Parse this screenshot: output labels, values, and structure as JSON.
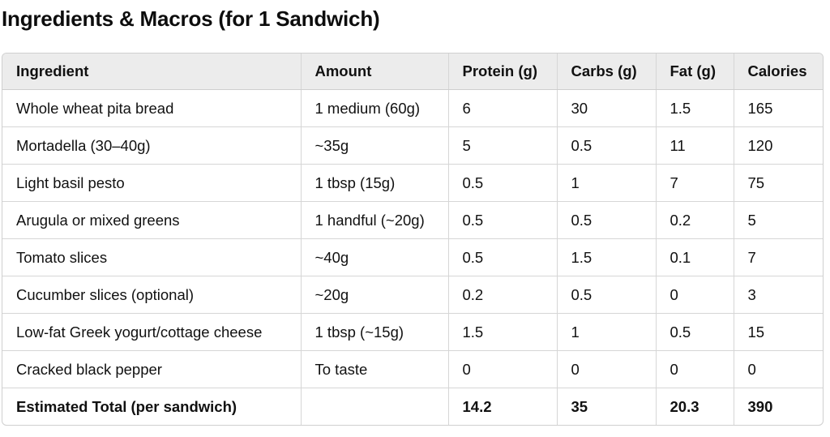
{
  "title": "Ingredients & Macros (for 1 Sandwich)",
  "table": {
    "headers": [
      "Ingredient",
      "Amount",
      "Protein (g)",
      "Carbs (g)",
      "Fat (g)",
      "Calories"
    ],
    "rows": [
      [
        "Whole wheat pita bread",
        "1 medium (60g)",
        "6",
        "30",
        "1.5",
        "165"
      ],
      [
        "Mortadella (30–40g)",
        "~35g",
        "5",
        "0.5",
        "11",
        "120"
      ],
      [
        "Light basil pesto",
        "1 tbsp (15g)",
        "0.5",
        "1",
        "7",
        "75"
      ],
      [
        "Arugula or mixed greens",
        "1 handful (~20g)",
        "0.5",
        "0.5",
        "0.2",
        "5"
      ],
      [
        "Tomato slices",
        "~40g",
        "0.5",
        "1.5",
        "0.1",
        "7"
      ],
      [
        "Cucumber slices (optional)",
        "~20g",
        "0.2",
        "0.5",
        "0",
        "3"
      ],
      [
        "Low-fat Greek yogurt/cottage cheese",
        "1 tbsp (~15g)",
        "1.5",
        "1",
        "0.5",
        "15"
      ],
      [
        "Cracked black pepper",
        "To taste",
        "0",
        "0",
        "0",
        "0"
      ]
    ],
    "total": [
      "Estimated Total (per sandwich)",
      "",
      "14.2",
      "35",
      "20.3",
      "390"
    ]
  }
}
